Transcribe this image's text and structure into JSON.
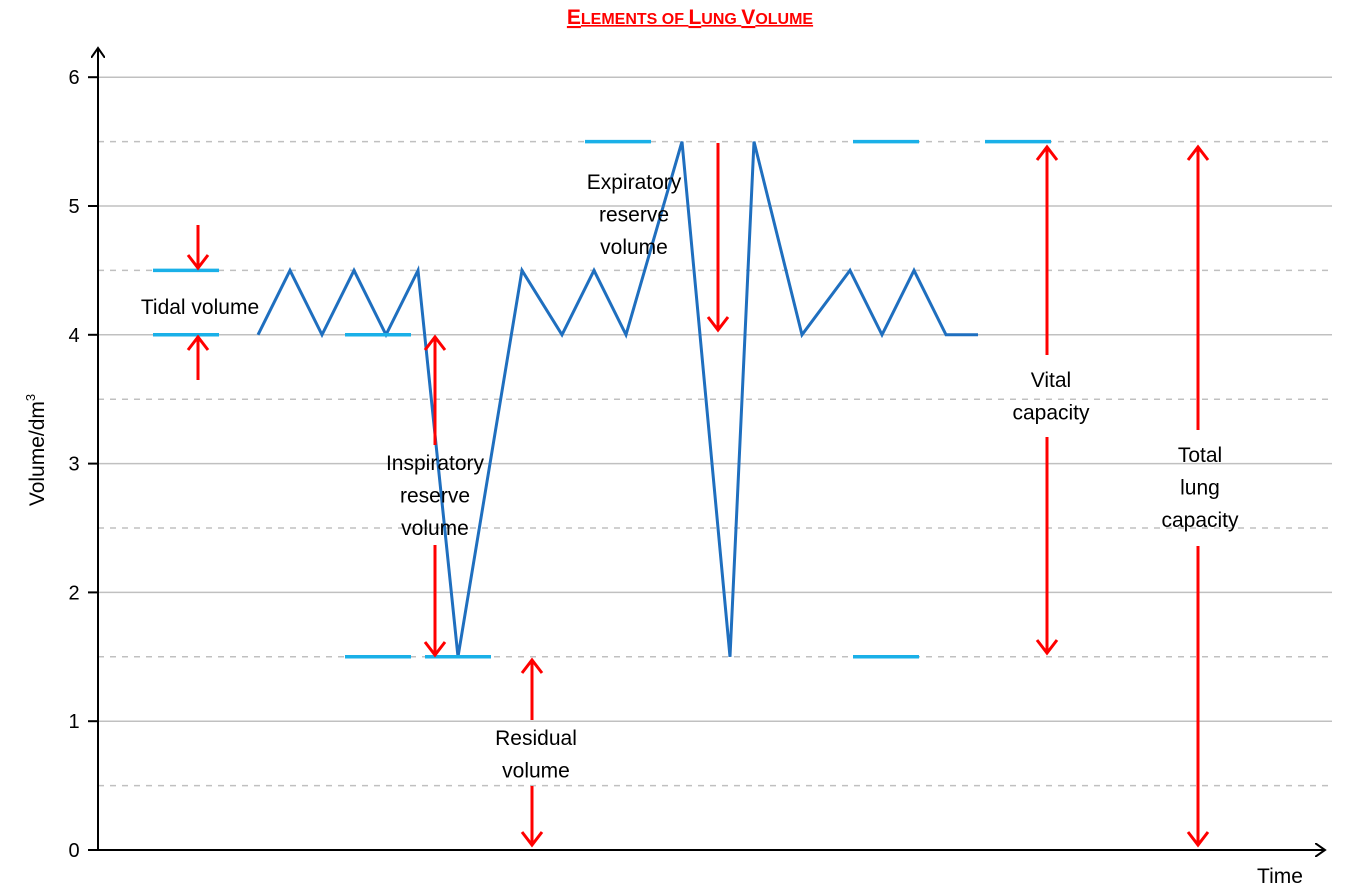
{
  "chart_data": {
    "type": "line",
    "title_caps": [
      "E",
      "L",
      "V"
    ],
    "title_rest": [
      "LEMENTS OF ",
      "UNG ",
      "OLUME"
    ],
    "xlabel": "Time",
    "ylabel": "Volume/dm",
    "ylabel_sup": "3",
    "ylim": [
      0,
      6
    ],
    "y_ticks": [
      "0",
      "1",
      "2",
      "3",
      "4",
      "5",
      "6"
    ],
    "grid": {
      "major": [
        1,
        2,
        3,
        4,
        5,
        6
      ],
      "minor_dashed": [
        0.5,
        1.5,
        2.5,
        3.5,
        4.5,
        5.5
      ]
    },
    "series": [
      {
        "color": "#1f6fbf",
        "x": [
          2.0,
          2.4,
          2.8,
          3.2,
          3.6,
          4.0,
          4.5,
          5.3,
          5.8,
          6.2,
          6.6,
          7.3,
          7.9,
          8.2,
          8.8,
          9.4,
          9.8,
          10.2,
          10.6,
          11.0
        ],
        "y": [
          4.0,
          4.5,
          4.0,
          4.5,
          4.0,
          4.5,
          1.5,
          4.5,
          4.0,
          4.5,
          4.0,
          5.5,
          1.5,
          5.5,
          4.0,
          4.5,
          4.0,
          4.5,
          4.0,
          4.0
        ]
      }
    ],
    "level_markers": [
      {
        "x": 1.1,
        "y": 4.5
      },
      {
        "x": 1.1,
        "y": 4.0
      },
      {
        "x": 3.5,
        "y": 4.0
      },
      {
        "x": 3.5,
        "y": 1.5
      },
      {
        "x": 4.5,
        "y": 1.5
      },
      {
        "x": 6.5,
        "y": 5.5
      },
      {
        "x": 9.85,
        "y": 5.5
      },
      {
        "x": 9.85,
        "y": 1.5
      },
      {
        "x": 11.5,
        "y": 5.5
      }
    ],
    "annotations": [
      {
        "lines": [
          "Tidal volume"
        ],
        "color": "#000000"
      },
      {
        "lines": [
          "Inspiratory",
          "reserve",
          "volume"
        ],
        "color": "#000000"
      },
      {
        "lines": [
          "Residual",
          "volume"
        ],
        "color": "#000000"
      },
      {
        "lines": [
          "Expiratory",
          "reserve",
          "volume"
        ],
        "color": "#000000"
      },
      {
        "lines": [
          "Vital",
          "capacity"
        ],
        "color": "#000000"
      },
      {
        "lines": [
          "Total",
          "lung",
          "capacity"
        ],
        "color": "#000000"
      }
    ],
    "colors": {
      "line": "#1f6fbf",
      "marker": "#1ab0e8",
      "arrow": "#ff0000",
      "grid": "#c0c0c0",
      "title": "#ff0000"
    }
  }
}
